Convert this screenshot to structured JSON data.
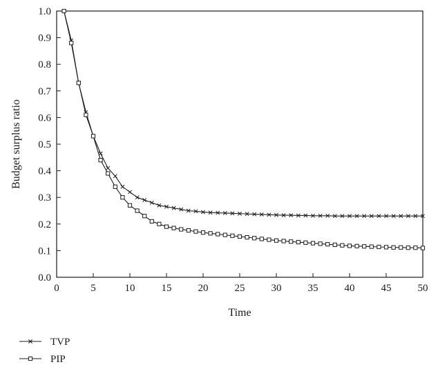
{
  "chart_data": {
    "type": "line",
    "title": "",
    "xlabel": "Time",
    "ylabel": "Budget surplus ratio",
    "xlim": [
      0,
      50
    ],
    "ylim": [
      0.0,
      1.0
    ],
    "xticks": [
      0,
      5,
      10,
      15,
      20,
      25,
      30,
      35,
      40,
      45,
      50
    ],
    "yticks": [
      0.0,
      0.1,
      0.2,
      0.3,
      0.4,
      0.5,
      0.6,
      0.7,
      0.8,
      0.9,
      1.0
    ],
    "x_tick_labels": [
      "0",
      "5",
      "10",
      "15",
      "20",
      "25",
      "30",
      "35",
      "40",
      "45",
      "50"
    ],
    "y_tick_labels": [
      "0.0",
      "0.1",
      "0.2",
      "0.3",
      "0.4",
      "0.5",
      "0.6",
      "0.7",
      "0.8",
      "0.9",
      "1.0"
    ],
    "grid": false,
    "legend_position": "bottom-left",
    "x": [
      1,
      2,
      3,
      4,
      5,
      6,
      7,
      8,
      9,
      10,
      11,
      12,
      13,
      14,
      15,
      16,
      17,
      18,
      19,
      20,
      21,
      22,
      23,
      24,
      25,
      26,
      27,
      28,
      29,
      30,
      31,
      32,
      33,
      34,
      35,
      36,
      37,
      38,
      39,
      40,
      41,
      42,
      43,
      44,
      45,
      46,
      47,
      48,
      49,
      50
    ],
    "series": [
      {
        "name": "TVP",
        "marker": "x-icon",
        "color": "#1a1a1a",
        "values": [
          1.0,
          0.89,
          0.73,
          0.62,
          0.53,
          0.465,
          0.41,
          0.38,
          0.34,
          0.32,
          0.3,
          0.29,
          0.28,
          0.27,
          0.265,
          0.26,
          0.255,
          0.25,
          0.248,
          0.245,
          0.243,
          0.242,
          0.241,
          0.24,
          0.239,
          0.238,
          0.237,
          0.236,
          0.235,
          0.234,
          0.233,
          0.233,
          0.232,
          0.232,
          0.231,
          0.231,
          0.231,
          0.23,
          0.23,
          0.23,
          0.23,
          0.23,
          0.23,
          0.23,
          0.23,
          0.23,
          0.23,
          0.23,
          0.23,
          0.23
        ]
      },
      {
        "name": "PIP",
        "marker": "square-icon",
        "color": "#1a1a1a",
        "values": [
          1.0,
          0.88,
          0.73,
          0.61,
          0.53,
          0.44,
          0.39,
          0.34,
          0.3,
          0.27,
          0.25,
          0.23,
          0.21,
          0.2,
          0.19,
          0.185,
          0.18,
          0.176,
          0.172,
          0.168,
          0.165,
          0.162,
          0.159,
          0.156,
          0.153,
          0.15,
          0.147,
          0.144,
          0.141,
          0.138,
          0.136,
          0.134,
          0.132,
          0.13,
          0.128,
          0.126,
          0.124,
          0.122,
          0.12,
          0.118,
          0.117,
          0.116,
          0.115,
          0.114,
          0.113,
          0.112,
          0.112,
          0.111,
          0.111,
          0.11
        ]
      }
    ]
  }
}
